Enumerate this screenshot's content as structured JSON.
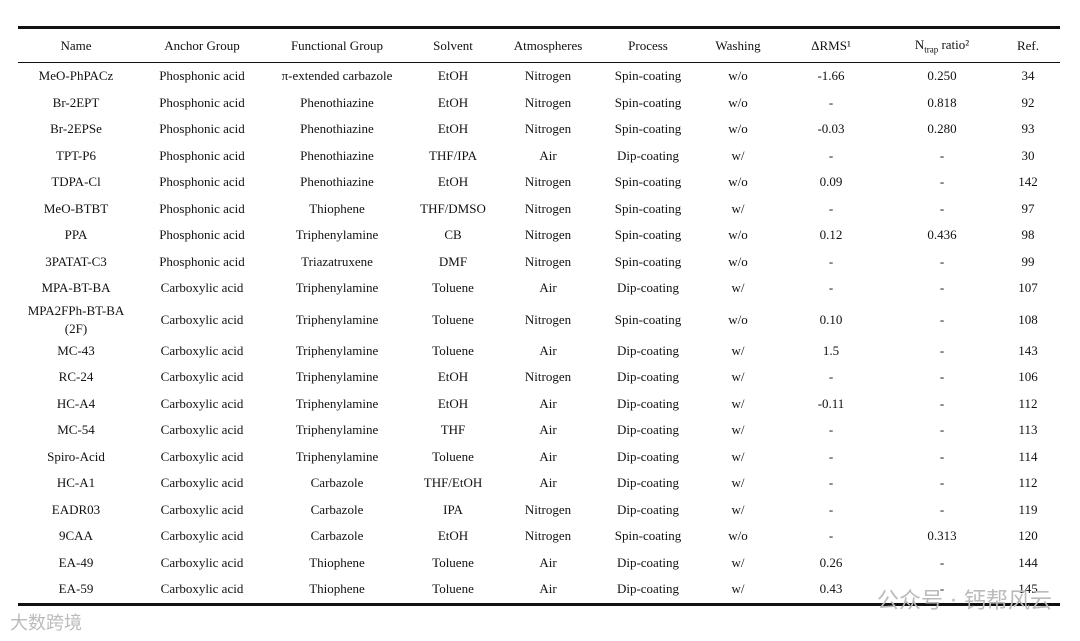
{
  "table": {
    "header": [
      "Name",
      "Anchor Group",
      "Functional Group",
      "Solvent",
      "Atmospheres",
      "Process",
      "Washing",
      "ΔRMS¹",
      {
        "main": "N",
        "sub": "trap",
        "rest": " ratio²"
      },
      "Ref."
    ],
    "rows": [
      [
        "MeO-PhPACz",
        "Phosphonic acid",
        "π-extended carbazole",
        "EtOH",
        "Nitrogen",
        "Spin-coating",
        "w/o",
        "-1.66",
        "0.250",
        "34"
      ],
      [
        "Br-2EPT",
        "Phosphonic acid",
        "Phenothiazine",
        "EtOH",
        "Nitrogen",
        "Spin-coating",
        "w/o",
        "-",
        "0.818",
        "92"
      ],
      [
        "Br-2EPSe",
        "Phosphonic acid",
        "Phenothiazine",
        "EtOH",
        "Nitrogen",
        "Spin-coating",
        "w/o",
        "-0.03",
        "0.280",
        "93"
      ],
      [
        "TPT-P6",
        "Phosphonic acid",
        "Phenothiazine",
        "THF/IPA",
        "Air",
        "Dip-coating",
        "w/",
        "-",
        "-",
        "30"
      ],
      [
        "TDPA-Cl",
        "Phosphonic acid",
        "Phenothiazine",
        "EtOH",
        "Nitrogen",
        "Spin-coating",
        "w/o",
        "0.09",
        "-",
        "142"
      ],
      [
        "MeO-BTBT",
        "Phosphonic acid",
        "Thiophene",
        "THF/DMSO",
        "Nitrogen",
        "Spin-coating",
        "w/",
        "-",
        "-",
        "97"
      ],
      [
        "PPA",
        "Phosphonic acid",
        "Triphenylamine",
        "CB",
        "Nitrogen",
        "Spin-coating",
        "w/o",
        "0.12",
        "0.436",
        "98"
      ],
      [
        "3PATAT-C3",
        "Phosphonic acid",
        "Triazatruxene",
        "DMF",
        "Nitrogen",
        "Spin-coating",
        "w/o",
        "-",
        "-",
        "99"
      ],
      [
        "MPA-BT-BA",
        "Carboxylic acid",
        "Triphenylamine",
        "Toluene",
        "Air",
        "Dip-coating",
        "w/",
        "-",
        "-",
        "107"
      ],
      [
        "MPA2FPh-BT-BA (2F)",
        "Carboxylic acid",
        "Triphenylamine",
        "Toluene",
        "Nitrogen",
        "Spin-coating",
        "w/o",
        "0.10",
        "-",
        "108"
      ],
      [
        "MC-43",
        "Carboxylic acid",
        "Triphenylamine",
        "Toluene",
        "Air",
        "Dip-coating",
        "w/",
        "1.5",
        "-",
        "143"
      ],
      [
        "RC-24",
        "Carboxylic acid",
        "Triphenylamine",
        "EtOH",
        "Nitrogen",
        "Dip-coating",
        "w/",
        "-",
        "-",
        "106"
      ],
      [
        "HC-A4",
        "Carboxylic acid",
        "Triphenylamine",
        "EtOH",
        "Air",
        "Dip-coating",
        "w/",
        "-0.11",
        "-",
        "112"
      ],
      [
        "MC-54",
        "Carboxylic acid",
        "Triphenylamine",
        "THF",
        "Air",
        "Dip-coating",
        "w/",
        "-",
        "-",
        "113"
      ],
      [
        "Spiro-Acid",
        "Carboxylic acid",
        "Triphenylamine",
        "Toluene",
        "Air",
        "Dip-coating",
        "w/",
        "-",
        "-",
        "114"
      ],
      [
        "HC-A1",
        "Carboxylic acid",
        "Carbazole",
        "THF/EtOH",
        "Air",
        "Dip-coating",
        "w/",
        "-",
        "-",
        "112"
      ],
      [
        "EADR03",
        "Carboxylic acid",
        "Carbazole",
        "IPA",
        "Nitrogen",
        "Dip-coating",
        "w/",
        "-",
        "-",
        "119"
      ],
      [
        "9CAA",
        "Carboxylic acid",
        "Carbazole",
        "EtOH",
        "Nitrogen",
        "Spin-coating",
        "w/o",
        "-",
        "0.313",
        "120"
      ],
      [
        "EA-49",
        "Carboxylic acid",
        "Thiophene",
        "Toluene",
        "Air",
        "Dip-coating",
        "w/",
        "0.26",
        "-",
        "144"
      ],
      [
        "EA-59",
        "Carboxylic acid",
        "Thiophene",
        "Toluene",
        "Air",
        "Dip-coating",
        "w/",
        "0.43",
        "-",
        "145"
      ]
    ]
  },
  "watermarks": [
    "公众号 · 钙帮风云",
    "大数跨境"
  ]
}
